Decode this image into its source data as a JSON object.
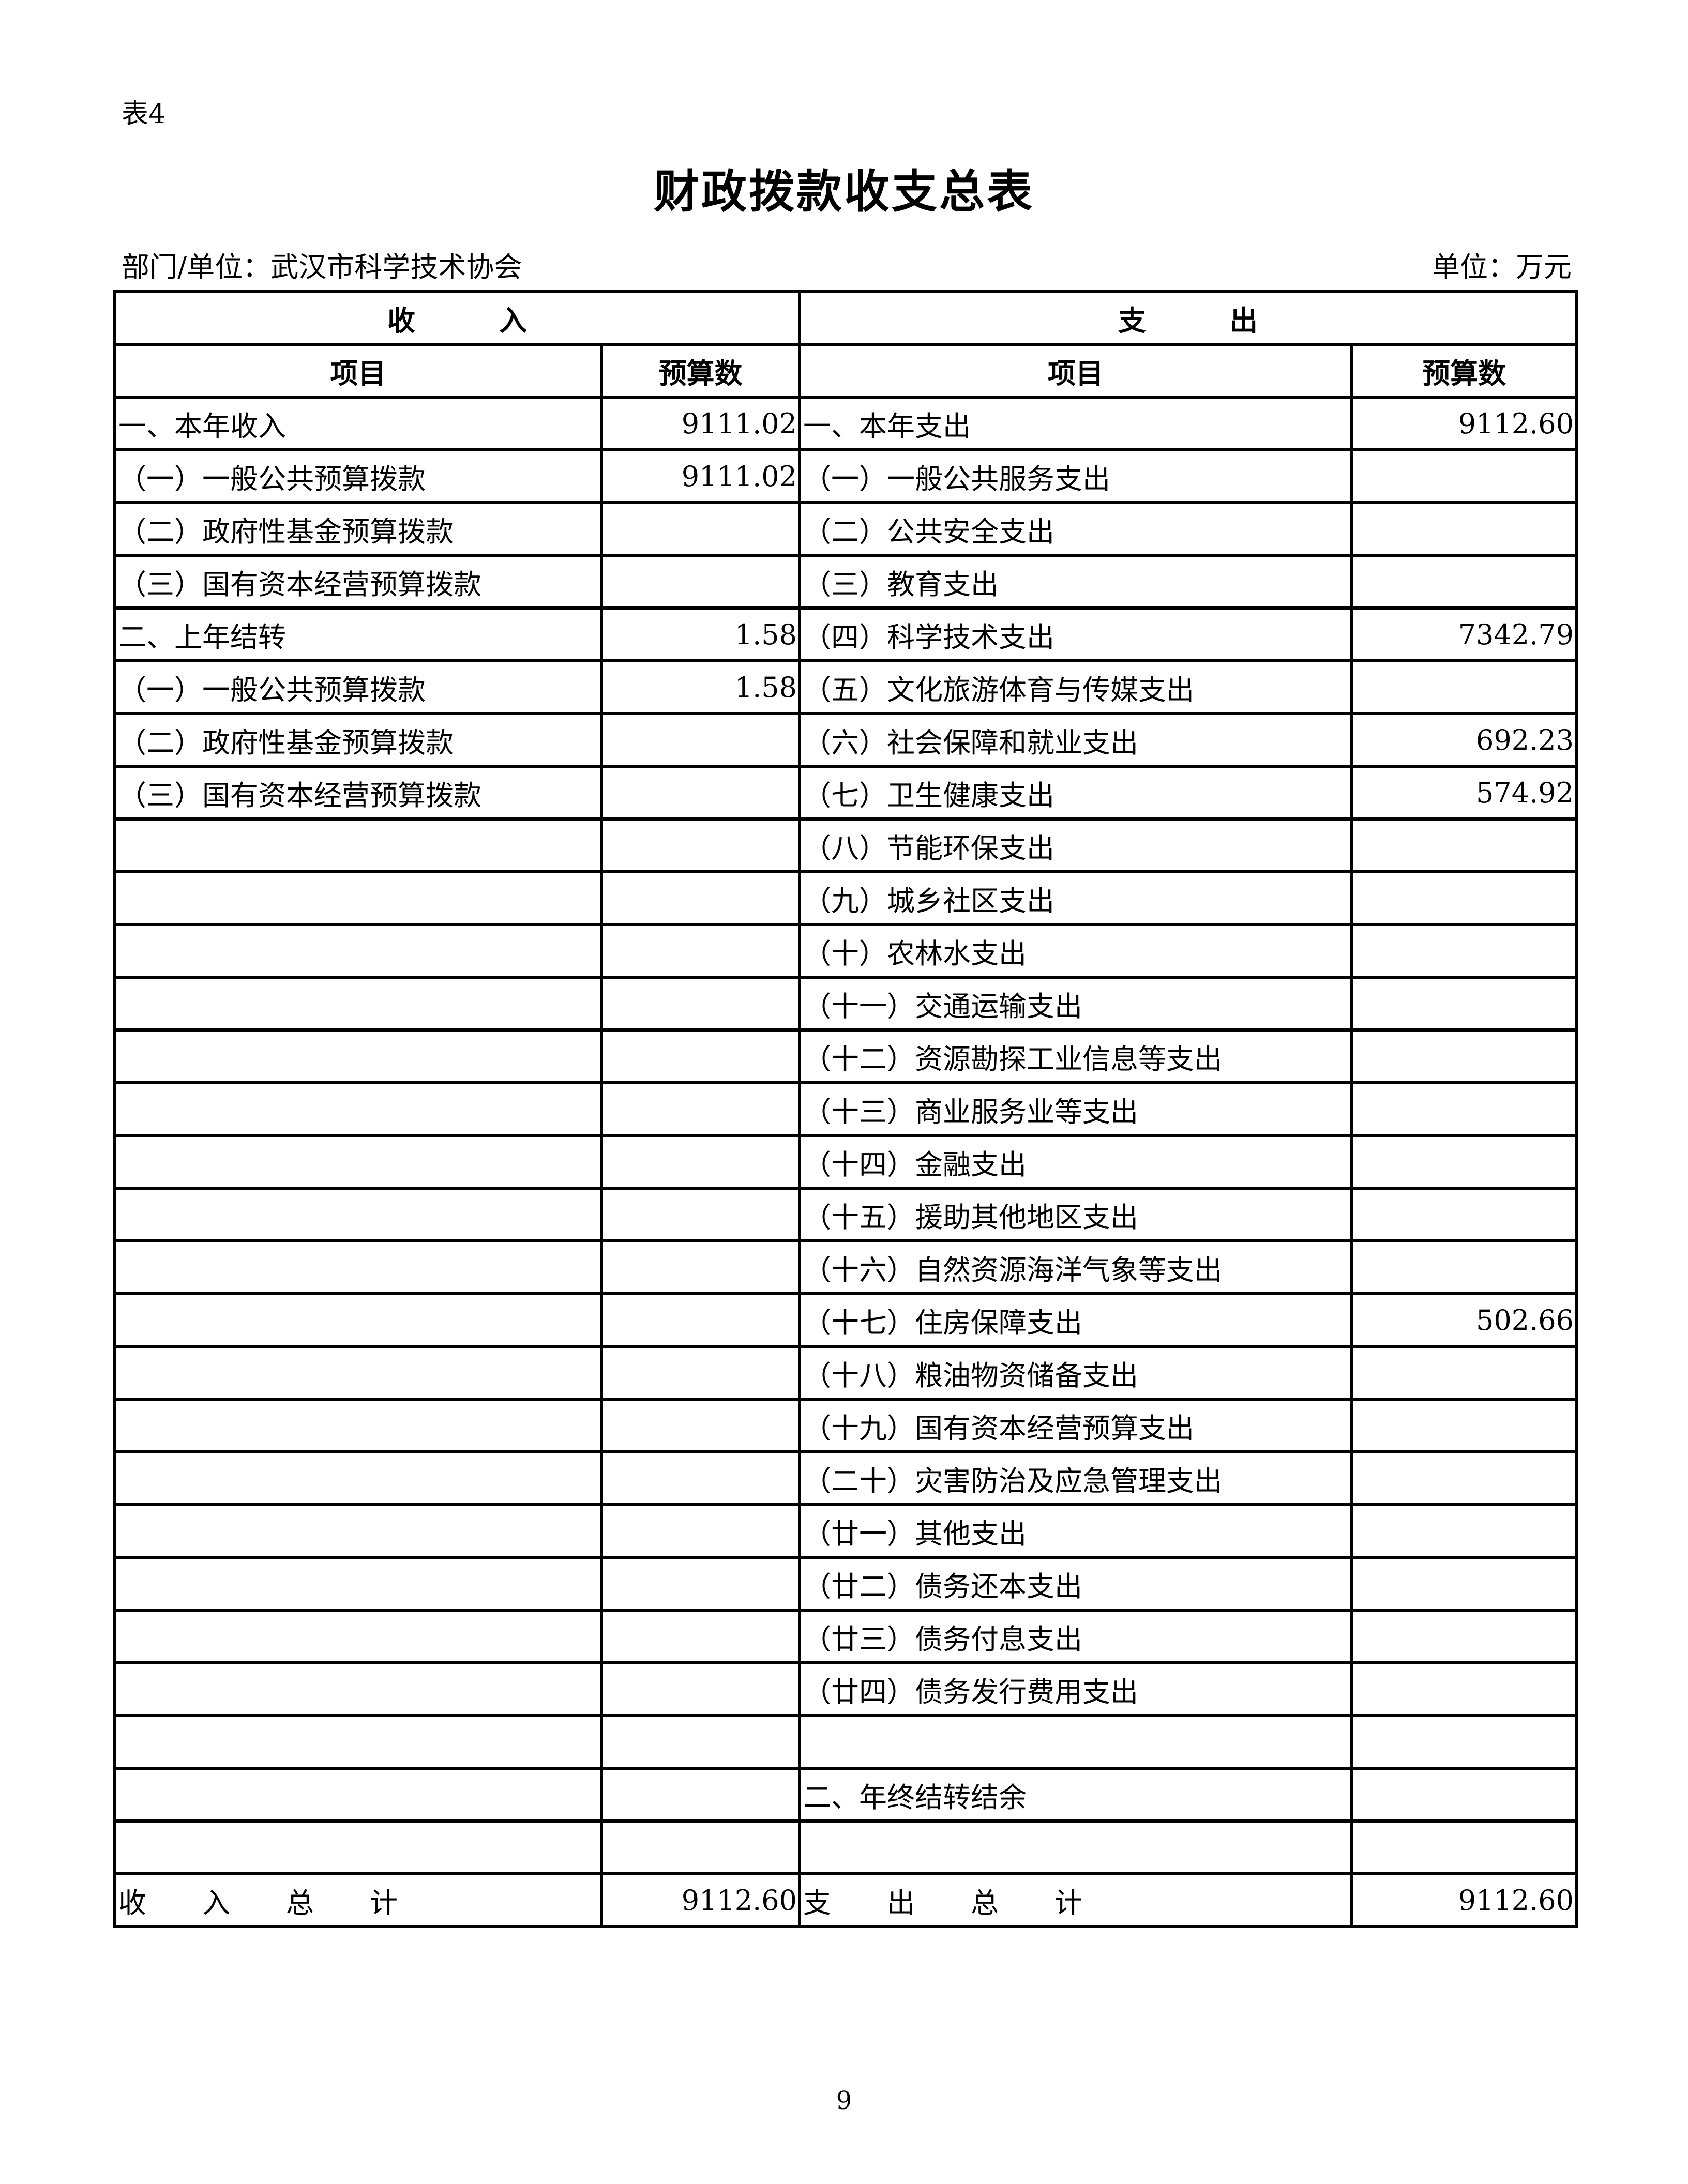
{
  "table_no": "表4",
  "title": "财政拨款收支总表",
  "department": "部门/单位：武汉市科学技术协会",
  "unit": "单位：万元",
  "headers": {
    "income": "收　　　入",
    "expense": "支　　　出",
    "item": "项目",
    "budget": "预算数"
  },
  "rows": [
    [
      "一、本年收入",
      "9111.02",
      "一、本年支出",
      "9112.60"
    ],
    [
      "（一）一般公共预算拨款",
      "9111.02",
      "（一）一般公共服务支出",
      ""
    ],
    [
      "（二）政府性基金预算拨款",
      "",
      "（二）公共安全支出",
      ""
    ],
    [
      "（三）国有资本经营预算拨款",
      "",
      "（三）教育支出",
      ""
    ],
    [
      "二、上年结转",
      "1.58",
      "（四）科学技术支出",
      "7342.79"
    ],
    [
      "（一）一般公共预算拨款",
      "1.58",
      "（五）文化旅游体育与传媒支出",
      ""
    ],
    [
      "（二）政府性基金预算拨款",
      "",
      "（六）社会保障和就业支出",
      "692.23"
    ],
    [
      "（三）国有资本经营预算拨款",
      "",
      "（七）卫生健康支出",
      "574.92"
    ],
    [
      "",
      "",
      "（八）节能环保支出",
      ""
    ],
    [
      "",
      "",
      "（九）城乡社区支出",
      ""
    ],
    [
      "",
      "",
      "（十）农林水支出",
      ""
    ],
    [
      "",
      "",
      "（十一）交通运输支出",
      ""
    ],
    [
      "",
      "",
      "（十二）资源勘探工业信息等支出",
      ""
    ],
    [
      "",
      "",
      "（十三）商业服务业等支出",
      ""
    ],
    [
      "",
      "",
      "（十四）金融支出",
      ""
    ],
    [
      "",
      "",
      "（十五）援助其他地区支出",
      ""
    ],
    [
      "",
      "",
      "（十六）自然资源海洋气象等支出",
      ""
    ],
    [
      "",
      "",
      "（十七）住房保障支出",
      "502.66"
    ],
    [
      "",
      "",
      "（十八）粮油物资储备支出",
      ""
    ],
    [
      "",
      "",
      "（十九）国有资本经营预算支出",
      ""
    ],
    [
      "",
      "",
      "（二十）灾害防治及应急管理支出",
      ""
    ],
    [
      "",
      "",
      "（廿一）其他支出",
      ""
    ],
    [
      "",
      "",
      "（廿二）债务还本支出",
      ""
    ],
    [
      "",
      "",
      "（廿三）债务付息支出",
      ""
    ],
    [
      "",
      "",
      "（廿四）债务发行费用支出",
      ""
    ],
    [
      "",
      "",
      "",
      ""
    ],
    [
      "",
      "",
      "二、年终结转结余",
      ""
    ],
    [
      "",
      "",
      "",
      ""
    ]
  ],
  "totals": {
    "income_label": "收　　入　　总　　计",
    "income_value": "9112.60",
    "expense_label": "支　　出　　总　　计",
    "expense_value": "9112.60"
  },
  "page_number": "9"
}
